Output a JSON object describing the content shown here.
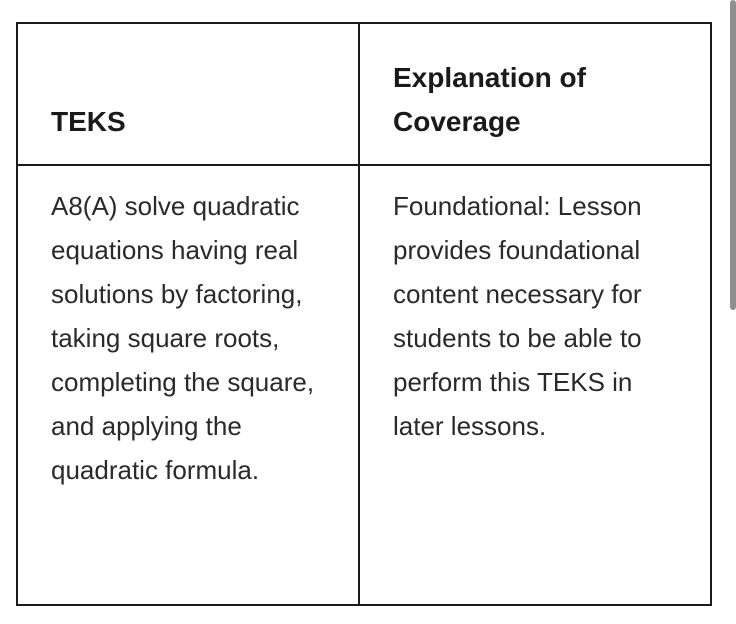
{
  "table": {
    "headers": [
      "TEKS",
      "Explanation of Coverage"
    ],
    "rows": [
      {
        "teks": "A8(A) solve quadratic equations having real solutions by factoring, taking square roots, completing the square, and applying the quadratic formula.",
        "coverage": "Foundational: Lesson provides foundational content necessary for students to be able to perform this TEKS in later lessons."
      }
    ]
  }
}
